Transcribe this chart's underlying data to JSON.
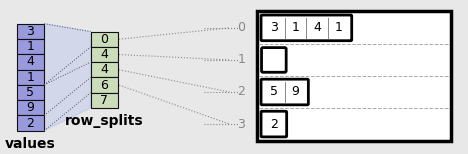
{
  "values": [
    3,
    1,
    4,
    1,
    5,
    9,
    2
  ],
  "row_splits": [
    0,
    4,
    4,
    6,
    7
  ],
  "rows": [
    [
      3,
      1,
      4,
      1
    ],
    [],
    [
      5,
      9
    ],
    [
      2
    ]
  ],
  "values_color": "#9999dd",
  "values_color_light": "#bbbbee",
  "row_splits_color": "#ccddbb",
  "bg_color": "#e8e8e8",
  "black_color": "#111111",
  "gray_label_color": "#888888",
  "font_size": 9,
  "label_font_size": 10
}
